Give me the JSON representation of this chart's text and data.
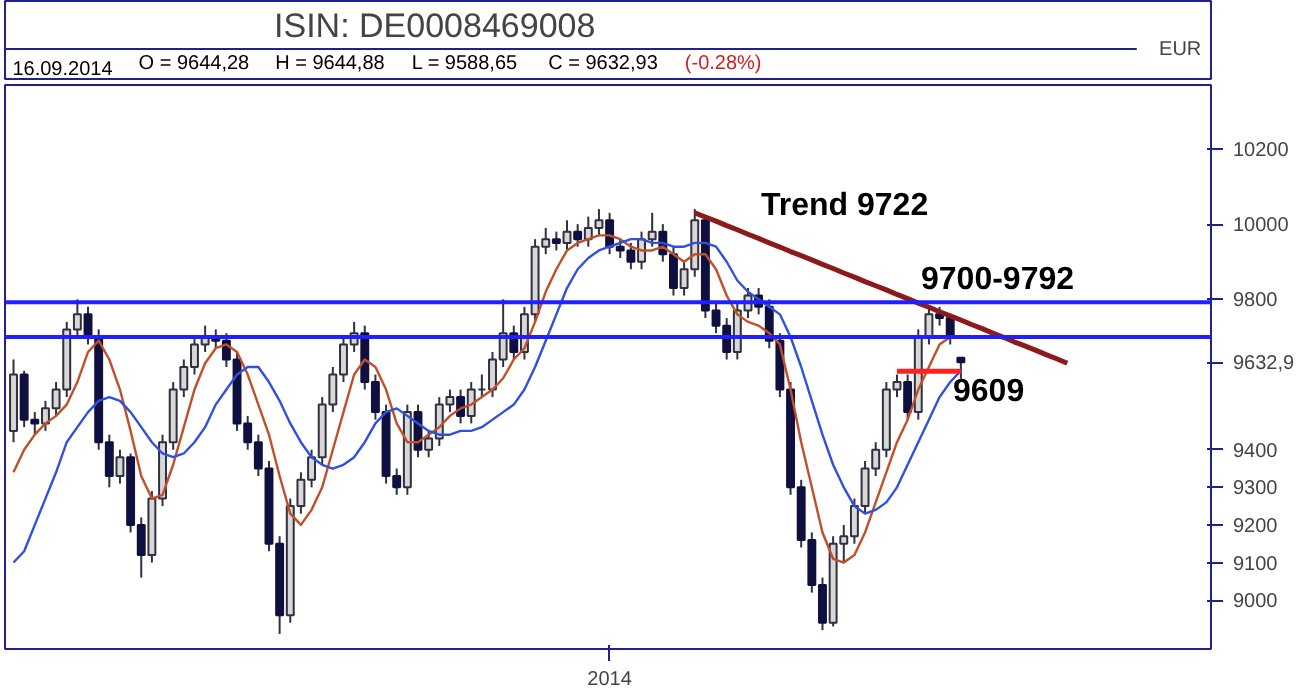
{
  "chart_data": {
    "type": "candlestick",
    "title": "ISIN: DE0008469008",
    "ylabel": "EUR",
    "annotations": [
      "16.09.2014",
      "O = 9644,28",
      "H = 9644,88",
      "L = 9588,65",
      "C = 9632,93",
      "(-0.28%)",
      "Trend 9722",
      "9700-9792",
      "9609"
    ],
    "categories": [
      null,
      null,
      null,
      null,
      null,
      null,
      null,
      null,
      null,
      null,
      null,
      null,
      null,
      null,
      null,
      null,
      null,
      null,
      null,
      null,
      null,
      null,
      null,
      null,
      null,
      null,
      null,
      null,
      null,
      null,
      null,
      null,
      null,
      null,
      null,
      null,
      null,
      null,
      null,
      null,
      null,
      null,
      null,
      null,
      null,
      null,
      null,
      null,
      null,
      null,
      null,
      null,
      null,
      null,
      null,
      null,
      "2014",
      null,
      null,
      null,
      null,
      null,
      null,
      null,
      null,
      null,
      null,
      null,
      null,
      null,
      null,
      null,
      null,
      null,
      null,
      null,
      null,
      null,
      null,
      null,
      null,
      null,
      null,
      null,
      null,
      null,
      null,
      null,
      null,
      null,
      null,
      null,
      null,
      null,
      null,
      null,
      null,
      null,
      null,
      null,
      null,
      null,
      null,
      null,
      null,
      null,
      null,
      null,
      null,
      null,
      null,
      null,
      null
    ],
    "ohlc": [
      [
        9450,
        9640,
        9420,
        9600
      ],
      [
        9600,
        9610,
        9460,
        9480
      ],
      [
        9480,
        9500,
        9440,
        9470
      ],
      [
        9470,
        9530,
        9450,
        9510
      ],
      [
        9510,
        9580,
        9490,
        9560
      ],
      [
        9560,
        9740,
        9540,
        9720
      ],
      [
        9720,
        9800,
        9700,
        9760
      ],
      [
        9760,
        9780,
        9680,
        9700
      ],
      [
        9700,
        9720,
        9400,
        9420
      ],
      [
        9420,
        9440,
        9300,
        9330
      ],
      [
        9330,
        9400,
        9310,
        9380
      ],
      [
        9380,
        9390,
        9180,
        9200
      ],
      [
        9200,
        9220,
        9060,
        9120
      ],
      [
        9120,
        9290,
        9100,
        9270
      ],
      [
        9270,
        9440,
        9250,
        9420
      ],
      [
        9420,
        9580,
        9400,
        9560
      ],
      [
        9560,
        9640,
        9540,
        9620
      ],
      [
        9620,
        9700,
        9600,
        9680
      ],
      [
        9680,
        9730,
        9660,
        9700
      ],
      [
        9700,
        9720,
        9670,
        9690
      ],
      [
        9690,
        9710,
        9620,
        9640
      ],
      [
        9640,
        9660,
        9450,
        9470
      ],
      [
        9470,
        9490,
        9400,
        9420
      ],
      [
        9420,
        9440,
        9330,
        9350
      ],
      [
        9350,
        9370,
        9130,
        9150
      ],
      [
        9150,
        9170,
        8910,
        8960
      ],
      [
        8960,
        9270,
        8940,
        9250
      ],
      [
        9250,
        9340,
        9230,
        9320
      ],
      [
        9320,
        9400,
        9300,
        9380
      ],
      [
        9380,
        9540,
        9360,
        9520
      ],
      [
        9520,
        9620,
        9500,
        9600
      ],
      [
        9600,
        9700,
        9580,
        9680
      ],
      [
        9680,
        9740,
        9660,
        9710
      ],
      [
        9710,
        9730,
        9560,
        9580
      ],
      [
        9580,
        9600,
        9480,
        9500
      ],
      [
        9500,
        9520,
        9310,
        9330
      ],
      [
        9330,
        9350,
        9280,
        9300
      ],
      [
        9300,
        9520,
        9280,
        9500
      ],
      [
        9500,
        9520,
        9380,
        9400
      ],
      [
        9400,
        9450,
        9380,
        9430
      ],
      [
        9430,
        9540,
        9410,
        9520
      ],
      [
        9520,
        9560,
        9500,
        9540
      ],
      [
        9540,
        9560,
        9470,
        9490
      ],
      [
        9490,
        9580,
        9470,
        9560
      ],
      [
        9560,
        9600,
        9540,
        9560
      ],
      [
        9560,
        9660,
        9540,
        9640
      ],
      [
        9640,
        9800,
        9620,
        9710
      ],
      [
        9710,
        9730,
        9640,
        9660
      ],
      [
        9660,
        9780,
        9640,
        9760
      ],
      [
        9760,
        9960,
        9740,
        9940
      ],
      [
        9940,
        9990,
        9920,
        9960
      ],
      [
        9960,
        9980,
        9930,
        9950
      ],
      [
        9950,
        10010,
        9930,
        9980
      ],
      [
        9980,
        10000,
        9940,
        9960
      ],
      [
        9960,
        10020,
        9940,
        9990
      ],
      [
        9990,
        10040,
        9970,
        10010
      ],
      [
        10010,
        10030,
        9920,
        9940
      ],
      [
        9940,
        9960,
        9910,
        9930
      ],
      [
        9930,
        9950,
        9880,
        9900
      ],
      [
        9900,
        9980,
        9880,
        9960
      ],
      [
        9960,
        10030,
        9940,
        9980
      ],
      [
        9980,
        10000,
        9900,
        9920
      ],
      [
        9920,
        9940,
        9810,
        9830
      ],
      [
        9830,
        9900,
        9810,
        9880
      ],
      [
        9880,
        10040,
        9860,
        10010
      ],
      [
        10010,
        10020,
        9750,
        9770
      ],
      [
        9770,
        9790,
        9710,
        9730
      ],
      [
        9730,
        9750,
        9640,
        9660
      ],
      [
        9660,
        9790,
        9640,
        9770
      ],
      [
        9770,
        9830,
        9750,
        9810
      ],
      [
        9810,
        9830,
        9760,
        9780
      ],
      [
        9780,
        9800,
        9670,
        9690
      ],
      [
        9690,
        9710,
        9540,
        9560
      ],
      [
        9560,
        9580,
        9280,
        9300
      ],
      [
        9300,
        9320,
        9140,
        9160
      ],
      [
        9160,
        9180,
        9020,
        9040
      ],
      [
        9040,
        9060,
        8920,
        8940
      ],
      [
        8940,
        9170,
        8930,
        9150
      ],
      [
        9150,
        9200,
        9100,
        9170
      ],
      [
        9170,
        9270,
        9150,
        9250
      ],
      [
        9250,
        9370,
        9230,
        9350
      ],
      [
        9350,
        9420,
        9330,
        9400
      ],
      [
        9400,
        9580,
        9380,
        9560
      ],
      [
        9560,
        9600,
        9540,
        9580
      ],
      [
        9580,
        9600,
        9480,
        9500
      ],
      [
        9500,
        9720,
        9480,
        9700
      ],
      [
        9700,
        9780,
        9680,
        9760
      ],
      [
        9760,
        9780,
        9730,
        9750
      ],
      [
        9750,
        9760,
        9680,
        9700
      ],
      [
        9644.28,
        9644.88,
        9588.65,
        9632.93
      ],
      null,
      null,
      null,
      null,
      null,
      null,
      null,
      null,
      null,
      null,
      null,
      null,
      null,
      null,
      null,
      null,
      null,
      null,
      null,
      null,
      null,
      null,
      null
    ],
    "series": [
      {
        "type": "line",
        "color": "#c0502a",
        "values": [
          9340,
          9400,
          9440,
          9470,
          9490,
          9520,
          9580,
          9660,
          9690,
          9640,
          9560,
          9450,
          9330,
          9270,
          9280,
          9360,
          9460,
          9560,
          9630,
          9670,
          9680,
          9660,
          9600,
          9520,
          9440,
          9330,
          9230,
          9200,
          9240,
          9300,
          9400,
          9500,
          9600,
          9640,
          9620,
          9560,
          9470,
          9420,
          9420,
          9440,
          9460,
          9490,
          9510,
          9520,
          9540,
          9560,
          9590,
          9640,
          9670,
          9740,
          9820,
          9880,
          9930,
          9950,
          9960,
          9970,
          9970,
          9960,
          9940,
          9930,
          9930,
          9940,
          9920,
          9900,
          9920,
          9920,
          9880,
          9810,
          9760,
          9740,
          9730,
          9710,
          9680,
          9560,
          9420,
          9300,
          9180,
          9110,
          9100,
          9120,
          9180,
          9260,
          9340,
          9420,
          9480,
          9560,
          9620,
          9680,
          9700,
          9700,
          null,
          null,
          null,
          null,
          null,
          null,
          null,
          null,
          null,
          null,
          null,
          null,
          null,
          null,
          null,
          null,
          null,
          null,
          null,
          null,
          null,
          null,
          null
        ]
      },
      {
        "type": "line",
        "color": "#3050e0",
        "values": [
          9100,
          9130,
          9200,
          9270,
          9340,
          9420,
          9460,
          9500,
          9530,
          9540,
          9530,
          9500,
          9460,
          9420,
          9390,
          9380,
          9390,
          9420,
          9460,
          9520,
          9560,
          9600,
          9620,
          9620,
          9580,
          9530,
          9470,
          9420,
          9380,
          9360,
          9350,
          9360,
          9380,
          9420,
          9470,
          9500,
          9510,
          9490,
          9470,
          9450,
          9440,
          9440,
          9450,
          9450,
          9460,
          9480,
          9500,
          9520,
          9560,
          9620,
          9690,
          9760,
          9830,
          9880,
          9910,
          9930,
          9940,
          9950,
          9960,
          9960,
          9950,
          9950,
          9940,
          9940,
          9950,
          9950,
          9940,
          9900,
          9850,
          9820,
          9800,
          9780,
          9760,
          9700,
          9620,
          9530,
          9440,
          9360,
          9300,
          9250,
          9230,
          9240,
          9260,
          9300,
          9360,
          9420,
          9480,
          9540,
          9580,
          9610,
          null,
          null,
          null,
          null,
          null,
          null,
          null,
          null,
          null,
          null,
          null,
          null,
          null,
          null,
          null,
          null,
          null,
          null,
          null,
          null,
          null,
          null,
          null
        ]
      },
      {
        "type": "line",
        "color": "#8b1a1a",
        "values": [
          null,
          null,
          null,
          null,
          null,
          null,
          null,
          null,
          null,
          null,
          null,
          null,
          null,
          null,
          null,
          null,
          null,
          null,
          null,
          null,
          null,
          null,
          null,
          null,
          null,
          null,
          null,
          null,
          null,
          null,
          null,
          null,
          null,
          null,
          null,
          null,
          null,
          null,
          null,
          null,
          null,
          null,
          null,
          null,
          null,
          null,
          null,
          null,
          null,
          null,
          null,
          null,
          null,
          null,
          null,
          null,
          null,
          null,
          null,
          null,
          null,
          null,
          null,
          null,
          10030,
          10019,
          10008,
          9996,
          9985,
          9973,
          9962,
          9950,
          9939,
          9927,
          9916,
          9905,
          9893,
          9882,
          9870,
          9859,
          9847,
          9836,
          9825,
          9813,
          9802,
          9790,
          9779,
          9767,
          9756,
          9745,
          9733,
          9722,
          9710,
          9699,
          9687,
          9676,
          9665,
          9653,
          9642,
          9630,
          null,
          null,
          null,
          null,
          null,
          null,
          null,
          null,
          null,
          null,
          null,
          null,
          null
        ]
      },
      {
        "type": "line",
        "color": "#ff2020",
        "values": [
          null,
          null,
          null,
          null,
          null,
          null,
          null,
          null,
          null,
          null,
          null,
          null,
          null,
          null,
          null,
          null,
          null,
          null,
          null,
          null,
          null,
          null,
          null,
          null,
          null,
          null,
          null,
          null,
          null,
          null,
          null,
          null,
          null,
          null,
          null,
          null,
          null,
          null,
          null,
          null,
          null,
          null,
          null,
          null,
          null,
          null,
          null,
          null,
          null,
          null,
          null,
          null,
          null,
          null,
          null,
          null,
          null,
          null,
          null,
          null,
          null,
          null,
          null,
          null,
          null,
          null,
          null,
          null,
          null,
          null,
          null,
          null,
          null,
          null,
          null,
          null,
          null,
          null,
          null,
          null,
          null,
          null,
          null,
          9609,
          9609,
          9609,
          9609,
          9609,
          9609,
          9609,
          null,
          null,
          null,
          null,
          null,
          null,
          null,
          null,
          null,
          null,
          null,
          null,
          null,
          null,
          null,
          null,
          null,
          null,
          null,
          null,
          null,
          null,
          null
        ]
      }
    ],
    "ref_lines": [
      {
        "axis": "y",
        "value": 9792,
        "color": "#1f1fff"
      },
      {
        "axis": "y",
        "value": 9700,
        "color": "#1f1fff"
      }
    ],
    "ylim": [
      8870,
      10370
    ],
    "yticks": [
      9000,
      9100,
      9200,
      9300,
      9400,
      {
        "value": 9632.9,
        "label": "9632,9"
      },
      9800,
      10000,
      10200
    ],
    "grid": false
  }
}
